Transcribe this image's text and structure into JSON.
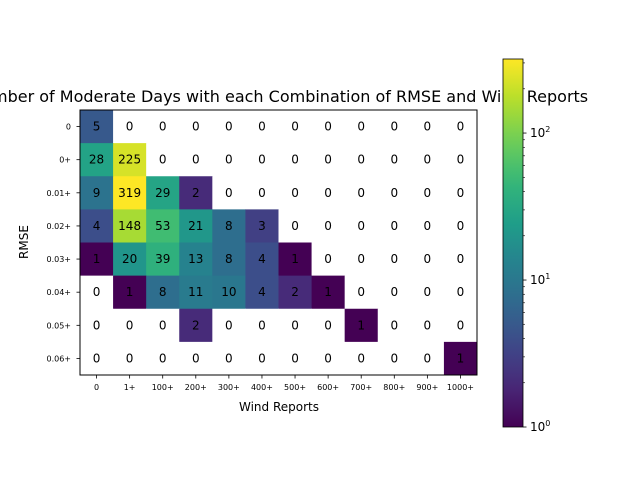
{
  "chart_data": {
    "type": "heatmap",
    "title": "Number of Moderate Days with each Combination of RMSE and Wind Reports",
    "xlabel": "Wind Reports",
    "ylabel": "RMSE",
    "x_categories": [
      "0",
      "1+",
      "100+",
      "200+",
      "300+",
      "400+",
      "500+",
      "600+",
      "700+",
      "800+",
      "900+",
      "1000+"
    ],
    "y_categories": [
      "0",
      "0+",
      "0.01+",
      "0.02+",
      "0.03+",
      "0.04+",
      "0.05+",
      "0.06+"
    ],
    "values": [
      [
        5,
        0,
        0,
        0,
        0,
        0,
        0,
        0,
        0,
        0,
        0,
        0
      ],
      [
        28,
        225,
        0,
        0,
        0,
        0,
        0,
        0,
        0,
        0,
        0,
        0
      ],
      [
        9,
        319,
        29,
        2,
        0,
        0,
        0,
        0,
        0,
        0,
        0,
        0
      ],
      [
        4,
        148,
        53,
        21,
        8,
        3,
        0,
        0,
        0,
        0,
        0,
        0
      ],
      [
        1,
        20,
        39,
        13,
        8,
        4,
        1,
        0,
        0,
        0,
        0,
        0
      ],
      [
        0,
        1,
        8,
        11,
        10,
        4,
        2,
        1,
        0,
        0,
        0,
        0
      ],
      [
        0,
        0,
        0,
        2,
        0,
        0,
        0,
        0,
        1,
        0,
        0,
        0
      ],
      [
        0,
        0,
        0,
        0,
        0,
        0,
        0,
        0,
        0,
        0,
        0,
        1
      ]
    ],
    "colormap": "viridis",
    "color_scale": "log",
    "color_range": [
      1,
      319
    ],
    "zero_color": "#ffffff",
    "colorbar": {
      "ticks": [
        {
          "value": 1,
          "base": "10",
          "exp": "0"
        },
        {
          "value": 10,
          "base": "10",
          "exp": "1"
        },
        {
          "value": 100,
          "base": "10",
          "exp": "2"
        }
      ]
    },
    "grid": false,
    "legend": "colorbar-right"
  }
}
